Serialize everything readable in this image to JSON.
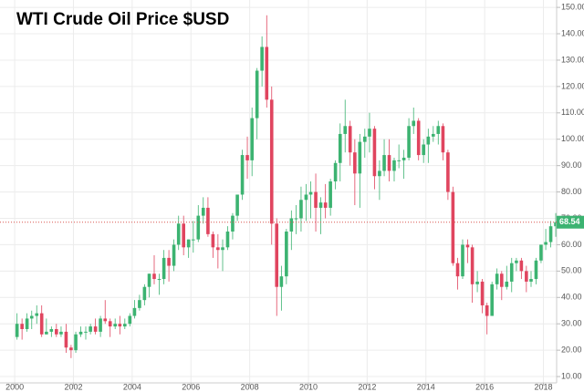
{
  "chart_data": {
    "type": "candlestick",
    "title": "WTI Crude Oil Price $USD",
    "x": [
      2000.08,
      2000.25,
      2000.42,
      2000.58,
      2000.75,
      2000.92,
      2001.08,
      2001.25,
      2001.42,
      2001.58,
      2001.75,
      2001.92,
      2002.08,
      2002.25,
      2002.42,
      2002.58,
      2002.75,
      2002.92,
      2003.08,
      2003.25,
      2003.42,
      2003.58,
      2003.75,
      2003.92,
      2004.08,
      2004.25,
      2004.42,
      2004.58,
      2004.75,
      2004.92,
      2005.08,
      2005.25,
      2005.42,
      2005.58,
      2005.75,
      2005.92,
      2006.08,
      2006.25,
      2006.42,
      2006.58,
      2006.75,
      2006.92,
      2007.08,
      2007.25,
      2007.42,
      2007.58,
      2007.75,
      2007.92,
      2008.08,
      2008.25,
      2008.42,
      2008.58,
      2008.75,
      2008.92,
      2009.08,
      2009.25,
      2009.42,
      2009.58,
      2009.75,
      2009.92,
      2010.08,
      2010.25,
      2010.42,
      2010.58,
      2010.75,
      2010.92,
      2011.08,
      2011.25,
      2011.42,
      2011.58,
      2011.75,
      2011.92,
      2012.08,
      2012.25,
      2012.42,
      2012.58,
      2012.75,
      2012.92,
      2013.08,
      2013.25,
      2013.42,
      2013.58,
      2013.75,
      2013.92,
      2014.08,
      2014.25,
      2014.42,
      2014.58,
      2014.75,
      2014.92,
      2015.08,
      2015.25,
      2015.42,
      2015.58,
      2015.75,
      2015.92,
      2016.08,
      2016.25,
      2016.42,
      2016.58,
      2016.75,
      2016.92,
      2017.08,
      2017.25,
      2017.42,
      2017.58,
      2017.75,
      2017.92,
      2018.08,
      2018.25,
      2018.42
    ],
    "open": [
      25,
      30,
      28,
      32,
      33,
      34,
      26,
      27,
      28,
      26,
      27,
      21,
      20,
      26,
      27,
      27,
      29,
      27,
      32,
      31,
      29,
      30,
      29,
      30,
      33,
      36,
      39,
      44,
      49,
      47,
      47,
      55,
      52,
      60,
      68,
      59,
      62,
      62,
      71,
      74,
      64,
      59,
      58,
      59,
      65,
      71,
      79,
      94,
      92,
      108,
      126,
      135,
      115,
      68,
      44,
      48,
      65,
      70,
      70,
      77,
      79,
      80,
      74,
      76,
      74,
      84,
      91,
      102,
      105,
      95,
      87,
      99,
      101,
      104,
      86,
      88,
      94,
      88,
      92,
      92,
      93,
      105,
      107,
      94,
      98,
      101,
      102,
      105,
      95,
      80,
      53,
      48,
      60,
      59,
      45,
      46,
      37,
      33,
      45,
      49,
      44,
      46,
      53,
      54,
      50,
      46,
      47,
      54,
      60,
      61,
      67
    ],
    "high": [
      34,
      32,
      34,
      35,
      37,
      37,
      32,
      29,
      30,
      29,
      30,
      22,
      27,
      29,
      29,
      30,
      32,
      33,
      39,
      32,
      32,
      33,
      32,
      34,
      39,
      41,
      45,
      49,
      56,
      49,
      58,
      58,
      62,
      71,
      71,
      62,
      69,
      75,
      78,
      78,
      65,
      64,
      62,
      67,
      72,
      79,
      96,
      101,
      112,
      127,
      139,
      147,
      120,
      70,
      52,
      66,
      73,
      75,
      82,
      83,
      84,
      87,
      78,
      83,
      85,
      92,
      106,
      115,
      107,
      100,
      102,
      104,
      110,
      105,
      92,
      100,
      100,
      93,
      98,
      96,
      108,
      112,
      108,
      100,
      104,
      105,
      107,
      106,
      96,
      82,
      55,
      62,
      62,
      60,
      50,
      47,
      38,
      46,
      51,
      50,
      52,
      55,
      55,
      55,
      52,
      50,
      55,
      60,
      66,
      69,
      72
    ],
    "low": [
      24,
      24,
      27,
      28,
      30,
      25,
      26,
      25,
      25,
      25,
      19,
      17,
      19,
      25,
      24,
      26,
      26,
      25,
      30,
      25,
      28,
      26,
      28,
      29,
      32,
      35,
      37,
      40,
      45,
      41,
      45,
      46,
      50,
      58,
      56,
      55,
      57,
      61,
      68,
      63,
      55,
      51,
      50,
      58,
      62,
      69,
      77,
      85,
      86,
      100,
      120,
      112,
      60,
      33,
      35,
      45,
      58,
      64,
      65,
      69,
      70,
      65,
      64,
      70,
      71,
      81,
      84,
      95,
      90,
      75,
      74,
      93,
      95,
      81,
      77,
      86,
      84,
      84,
      89,
      85,
      92,
      102,
      92,
      91,
      91,
      99,
      98,
      92,
      77,
      52,
      43,
      47,
      53,
      38,
      42,
      34,
      26,
      33,
      43,
      39,
      43,
      42,
      50,
      47,
      42,
      44,
      45,
      53,
      58,
      59,
      63
    ],
    "close": [
      30,
      28,
      32,
      33,
      34,
      26,
      27,
      28,
      26,
      27,
      21,
      20,
      26,
      27,
      27,
      29,
      27,
      32,
      31,
      29,
      30,
      29,
      30,
      33,
      36,
      39,
      44,
      49,
      47,
      47,
      55,
      52,
      60,
      68,
      59,
      62,
      62,
      71,
      74,
      64,
      59,
      58,
      59,
      65,
      71,
      79,
      94,
      92,
      108,
      126,
      135,
      115,
      68,
      44,
      48,
      65,
      70,
      70,
      77,
      79,
      80,
      74,
      76,
      74,
      84,
      91,
      102,
      105,
      95,
      87,
      99,
      101,
      104,
      86,
      88,
      94,
      88,
      92,
      92,
      93,
      105,
      107,
      94,
      98,
      101,
      102,
      105,
      95,
      80,
      53,
      48,
      60,
      59,
      45,
      46,
      37,
      33,
      45,
      49,
      44,
      46,
      53,
      54,
      50,
      46,
      47,
      54,
      60,
      61,
      67,
      68.54
    ],
    "up_color": "#3cb371",
    "down_color": "#e0455f",
    "xlim": [
      1999.5,
      2018.45
    ],
    "xticks": [
      2000,
      2002,
      2004,
      2006,
      2008,
      2010,
      2012,
      2014,
      2016,
      2018
    ],
    "ylim": [
      7.6,
      152.8
    ],
    "yticks": [
      {
        "value": 10,
        "label": "10.00"
      },
      {
        "value": 20,
        "label": "20.00"
      },
      {
        "value": 30,
        "label": "30.00"
      },
      {
        "value": 40,
        "label": "40.00"
      },
      {
        "value": 50,
        "label": "50.00"
      },
      {
        "value": 60,
        "label": "60.00"
      },
      {
        "value": 70,
        "label": "70.00"
      },
      {
        "value": 80,
        "label": "80.00"
      },
      {
        "value": 90,
        "label": "90.00"
      },
      {
        "value": 100,
        "label": "100.00"
      },
      {
        "value": 110,
        "label": "110.00"
      },
      {
        "value": 120,
        "label": "120.00"
      },
      {
        "value": 130,
        "label": "130.00"
      },
      {
        "value": 140,
        "label": "140.00"
      },
      {
        "value": 150,
        "label": "150.00"
      }
    ],
    "grid": true,
    "last_price": 68.54,
    "last_price_color": "#3cb371"
  }
}
